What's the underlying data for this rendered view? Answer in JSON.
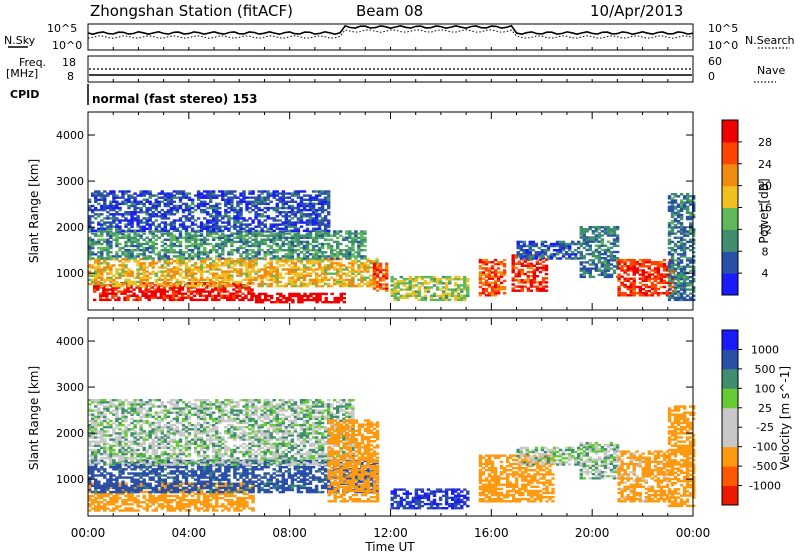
{
  "header": {
    "title": "Zhongshan Station (fitACF)",
    "beam": "Beam 08",
    "date": "10/Apr/2013"
  },
  "summary_panels": {
    "nsky": {
      "label": "N.Sky",
      "ticks_left": [
        "10^5",
        "10^0"
      ]
    },
    "nsearch": {
      "label": "N.Search",
      "ticks_right": [
        "10^5",
        "10^0"
      ]
    },
    "freq": {
      "label_line1": "Freq.",
      "label_line2": "[MHz]",
      "ticks_left": [
        "18",
        "8"
      ]
    },
    "nave": {
      "label": "Nave",
      "ticks_right": [
        "60",
        "0"
      ]
    },
    "cpid": {
      "label": "CPID",
      "mode_text": "normal (fast stereo) 153"
    }
  },
  "colors": {
    "power_scale": [
      "#1a1aff",
      "#2a4fa8",
      "#3f8f6f",
      "#5fb85a",
      "#f0c020",
      "#f08a10",
      "#ff4500",
      "#ee0000"
    ],
    "velocity_scale": [
      "#ee1a00",
      "#ff5a00",
      "#ff9a10",
      "#c8c8c8",
      "#c8c8c8",
      "#66cc33",
      "#3f8f6f",
      "#2a4fa8",
      "#1a1aff"
    ]
  },
  "chart_data": [
    {
      "type": "heatmap",
      "name": "power",
      "ylabel": "Slant Range [km]",
      "y_ticks": [
        "1000",
        "2000",
        "3000",
        "4000"
      ],
      "ylim": [
        200,
        4500
      ],
      "x_ticks": [
        "00:00",
        "04:00",
        "08:00",
        "12:00",
        "16:00",
        "20:00",
        "00:00"
      ],
      "colorbar": {
        "label": "Power [dB]",
        "ticks": [
          "28",
          "24",
          "20",
          "16",
          "12",
          "8",
          "4"
        ],
        "range": [
          0,
          30
        ]
      },
      "regions": [
        {
          "t0": 0.2,
          "t1": 6.5,
          "r0": 400,
          "r1": 800,
          "value": 28
        },
        {
          "t0": 6.5,
          "t1": 10.2,
          "r0": 350,
          "r1": 550,
          "value": 30
        },
        {
          "t0": 0.0,
          "t1": 11.5,
          "r0": 700,
          "r1": 1300,
          "value": 18
        },
        {
          "t0": 0.0,
          "t1": 11.0,
          "r0": 1300,
          "r1": 1900,
          "value": 10
        },
        {
          "t0": 0.0,
          "t1": 9.5,
          "r0": 1900,
          "r1": 2800,
          "value": 5
        },
        {
          "t0": 11.3,
          "t1": 11.8,
          "r0": 600,
          "r1": 1200,
          "value": 24
        },
        {
          "t0": 12.0,
          "t1": 15.0,
          "r0": 400,
          "r1": 900,
          "value": 14
        },
        {
          "t0": 15.5,
          "t1": 16.5,
          "r0": 500,
          "r1": 1300,
          "value": 24
        },
        {
          "t0": 16.8,
          "t1": 18.2,
          "r0": 600,
          "r1": 1400,
          "value": 26
        },
        {
          "t0": 17.0,
          "t1": 19.5,
          "r0": 1300,
          "r1": 1700,
          "value": 6
        },
        {
          "t0": 19.5,
          "t1": 21.0,
          "r0": 900,
          "r1": 2000,
          "value": 8
        },
        {
          "t0": 21.0,
          "t1": 23.2,
          "r0": 500,
          "r1": 1300,
          "value": 26
        },
        {
          "t0": 23.0,
          "t1": 24.0,
          "r0": 400,
          "r1": 2700,
          "value": 8
        }
      ]
    },
    {
      "type": "heatmap",
      "name": "velocity",
      "ylabel": "Slant Range [km]",
      "y_ticks": [
        "1000",
        "2000",
        "3000",
        "4000"
      ],
      "ylim": [
        200,
        4500
      ],
      "x_ticks": [
        "00:00",
        "04:00",
        "08:00",
        "12:00",
        "16:00",
        "20:00",
        "00:00"
      ],
      "xlabel": "Time UT",
      "colorbar": {
        "label": "Velocity [m s^-1]",
        "ticks": [
          "1000",
          "500",
          "100",
          "25",
          "-25",
          "-100",
          "-500",
          "-1000"
        ]
      },
      "regions": [
        {
          "t0": 0.0,
          "t1": 6.5,
          "r0": 300,
          "r1": 900,
          "value": -400
        },
        {
          "t0": 0.0,
          "t1": 11.5,
          "r0": 700,
          "r1": 1400,
          "value": 150
        },
        {
          "t0": 0.0,
          "t1": 10.5,
          "r0": 1300,
          "r1": 2700,
          "value": 0
        },
        {
          "t0": 9.5,
          "t1": 11.5,
          "r0": 500,
          "r1": 2300,
          "value": -300
        },
        {
          "t0": 12.0,
          "t1": 15.0,
          "r0": 350,
          "r1": 800,
          "value": 500
        },
        {
          "t0": 15.5,
          "t1": 18.5,
          "r0": 500,
          "r1": 1500,
          "value": -200
        },
        {
          "t0": 17.0,
          "t1": 19.5,
          "r0": 1300,
          "r1": 1700,
          "value": 0
        },
        {
          "t0": 19.5,
          "t1": 21.0,
          "r0": 1000,
          "r1": 1800,
          "value": 0
        },
        {
          "t0": 21.0,
          "t1": 23.0,
          "r0": 500,
          "r1": 1600,
          "value": -150
        },
        {
          "t0": 23.0,
          "t1": 24.0,
          "r0": 400,
          "r1": 2600,
          "value": -300
        }
      ]
    }
  ]
}
